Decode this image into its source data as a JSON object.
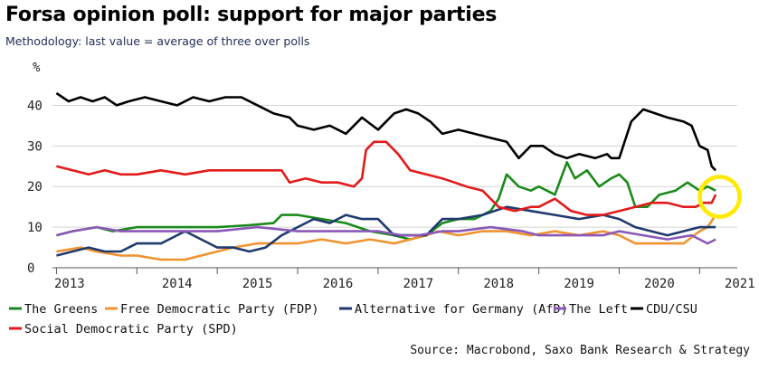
{
  "title": "Forsa opinion poll: support for major parties",
  "subtitle": "Methodology: last value = average of three over polls",
  "source": "Source: Macrobond, Saxo Bank Research & Strategy",
  "chart_data": {
    "type": "line",
    "title": "Forsa opinion poll: support for major parties",
    "ylabel": "%",
    "ylim": [
      0,
      45
    ],
    "xlim": [
      2012.95,
      2021.3
    ],
    "yticks": [
      0,
      10,
      20,
      30,
      40
    ],
    "xticks": [
      "2013",
      "2014",
      "2015",
      "2016",
      "2017",
      "2018",
      "2019",
      "2020",
      "2021"
    ],
    "grid": true,
    "legend_position": "bottom",
    "annotation": "yellow circle around latest values (early 2021)",
    "series": [
      {
        "name": "The Greens",
        "color": "#1a8a1a",
        "points": [
          [
            2013.0,
            8
          ],
          [
            2013.2,
            9
          ],
          [
            2013.5,
            10
          ],
          [
            2013.7,
            9
          ],
          [
            2014.0,
            10
          ],
          [
            2014.5,
            10
          ],
          [
            2015.0,
            10
          ],
          [
            2015.4,
            10.5
          ],
          [
            2015.7,
            11
          ],
          [
            2015.8,
            13
          ],
          [
            2016.0,
            13
          ],
          [
            2016.3,
            12
          ],
          [
            2016.6,
            11
          ],
          [
            2016.9,
            9
          ],
          [
            2017.2,
            8
          ],
          [
            2017.4,
            7
          ],
          [
            2017.6,
            8
          ],
          [
            2017.8,
            11
          ],
          [
            2018.0,
            12
          ],
          [
            2018.2,
            12
          ],
          [
            2018.4,
            14
          ],
          [
            2018.5,
            17
          ],
          [
            2018.6,
            23
          ],
          [
            2018.75,
            20
          ],
          [
            2018.9,
            19
          ],
          [
            2019.0,
            20
          ],
          [
            2019.2,
            18
          ],
          [
            2019.35,
            26
          ],
          [
            2019.45,
            22
          ],
          [
            2019.6,
            24
          ],
          [
            2019.75,
            20
          ],
          [
            2019.9,
            22
          ],
          [
            2020.0,
            23
          ],
          [
            2020.1,
            21
          ],
          [
            2020.2,
            15
          ],
          [
            2020.35,
            15
          ],
          [
            2020.5,
            18
          ],
          [
            2020.7,
            19
          ],
          [
            2020.85,
            21
          ],
          [
            2021.0,
            19
          ],
          [
            2021.1,
            20
          ],
          [
            2021.2,
            19
          ]
        ]
      },
      {
        "name": "Free Democratic Party (FDP)",
        "color": "#f0922e",
        "points": [
          [
            2013.0,
            4
          ],
          [
            2013.3,
            5
          ],
          [
            2013.5,
            4
          ],
          [
            2013.8,
            3
          ],
          [
            2014.0,
            3
          ],
          [
            2014.3,
            2
          ],
          [
            2014.6,
            2
          ],
          [
            2015.0,
            4
          ],
          [
            2015.2,
            5
          ],
          [
            2015.5,
            6
          ],
          [
            2015.8,
            6
          ],
          [
            2016.0,
            6
          ],
          [
            2016.3,
            7
          ],
          [
            2016.6,
            6
          ],
          [
            2016.9,
            7
          ],
          [
            2017.2,
            6
          ],
          [
            2017.4,
            7
          ],
          [
            2017.6,
            8
          ],
          [
            2017.75,
            9
          ],
          [
            2018.0,
            8
          ],
          [
            2018.3,
            9
          ],
          [
            2018.6,
            9
          ],
          [
            2018.9,
            8
          ],
          [
            2019.2,
            9
          ],
          [
            2019.5,
            8
          ],
          [
            2019.8,
            9
          ],
          [
            2020.0,
            8
          ],
          [
            2020.2,
            6
          ],
          [
            2020.4,
            6
          ],
          [
            2020.6,
            6
          ],
          [
            2020.8,
            6
          ],
          [
            2021.0,
            9
          ],
          [
            2021.1,
            10
          ],
          [
            2021.2,
            13
          ]
        ]
      },
      {
        "name": "Alternative for Germany (AfD)",
        "color": "#1f3a6e",
        "points": [
          [
            2013.0,
            3
          ],
          [
            2013.2,
            4
          ],
          [
            2013.4,
            5
          ],
          [
            2013.6,
            4
          ],
          [
            2013.8,
            4
          ],
          [
            2014.0,
            6
          ],
          [
            2014.3,
            6
          ],
          [
            2014.6,
            9
          ],
          [
            2014.8,
            7
          ],
          [
            2015.0,
            5
          ],
          [
            2015.2,
            5
          ],
          [
            2015.4,
            4
          ],
          [
            2015.6,
            5
          ],
          [
            2015.8,
            8
          ],
          [
            2016.0,
            10
          ],
          [
            2016.2,
            12
          ],
          [
            2016.4,
            11
          ],
          [
            2016.6,
            13
          ],
          [
            2016.8,
            12
          ],
          [
            2017.0,
            12
          ],
          [
            2017.2,
            8
          ],
          [
            2017.4,
            8
          ],
          [
            2017.6,
            8
          ],
          [
            2017.8,
            12
          ],
          [
            2018.0,
            12
          ],
          [
            2018.3,
            13
          ],
          [
            2018.6,
            15
          ],
          [
            2018.9,
            14
          ],
          [
            2019.2,
            13
          ],
          [
            2019.5,
            12
          ],
          [
            2019.8,
            13
          ],
          [
            2020.0,
            12
          ],
          [
            2020.2,
            10
          ],
          [
            2020.4,
            9
          ],
          [
            2020.6,
            8
          ],
          [
            2020.8,
            9
          ],
          [
            2021.0,
            10
          ],
          [
            2021.1,
            10
          ],
          [
            2021.2,
            10
          ]
        ]
      },
      {
        "name": "The Left",
        "color": "#8a58b8",
        "points": [
          [
            2013.0,
            8
          ],
          [
            2013.2,
            9
          ],
          [
            2013.5,
            10
          ],
          [
            2013.8,
            9
          ],
          [
            2014.0,
            9
          ],
          [
            2014.5,
            9
          ],
          [
            2015.0,
            9
          ],
          [
            2015.5,
            10
          ],
          [
            2016.0,
            9
          ],
          [
            2016.5,
            9
          ],
          [
            2017.0,
            9
          ],
          [
            2017.3,
            8
          ],
          [
            2017.5,
            8
          ],
          [
            2017.8,
            9
          ],
          [
            2018.0,
            9
          ],
          [
            2018.4,
            10
          ],
          [
            2018.8,
            9
          ],
          [
            2019.0,
            8
          ],
          [
            2019.4,
            8
          ],
          [
            2019.8,
            8
          ],
          [
            2020.0,
            9
          ],
          [
            2020.3,
            8
          ],
          [
            2020.6,
            7
          ],
          [
            2020.9,
            8
          ],
          [
            2021.0,
            7
          ],
          [
            2021.1,
            6
          ],
          [
            2021.2,
            7
          ]
        ]
      },
      {
        "name": "CDU/CSU",
        "color": "#000000",
        "points": [
          [
            2013.0,
            43
          ],
          [
            2013.15,
            41
          ],
          [
            2013.3,
            42
          ],
          [
            2013.45,
            41
          ],
          [
            2013.6,
            42
          ],
          [
            2013.75,
            40
          ],
          [
            2013.9,
            41
          ],
          [
            2014.1,
            42
          ],
          [
            2014.3,
            41
          ],
          [
            2014.5,
            40
          ],
          [
            2014.7,
            42
          ],
          [
            2014.9,
            41
          ],
          [
            2015.1,
            42
          ],
          [
            2015.3,
            42
          ],
          [
            2015.5,
            40
          ],
          [
            2015.7,
            38
          ],
          [
            2015.9,
            37
          ],
          [
            2016.0,
            35
          ],
          [
            2016.2,
            34
          ],
          [
            2016.4,
            35
          ],
          [
            2016.6,
            33
          ],
          [
            2016.8,
            37
          ],
          [
            2017.0,
            34
          ],
          [
            2017.2,
            38
          ],
          [
            2017.35,
            39
          ],
          [
            2017.5,
            38
          ],
          [
            2017.65,
            36
          ],
          [
            2017.8,
            33
          ],
          [
            2018.0,
            34
          ],
          [
            2018.2,
            33
          ],
          [
            2018.4,
            32
          ],
          [
            2018.6,
            31
          ],
          [
            2018.75,
            27
          ],
          [
            2018.9,
            30
          ],
          [
            2019.05,
            30
          ],
          [
            2019.2,
            28
          ],
          [
            2019.35,
            27
          ],
          [
            2019.5,
            28
          ],
          [
            2019.7,
            27
          ],
          [
            2019.85,
            28
          ],
          [
            2019.9,
            27
          ],
          [
            2020.0,
            27
          ],
          [
            2020.15,
            36
          ],
          [
            2020.3,
            39
          ],
          [
            2020.45,
            38
          ],
          [
            2020.6,
            37
          ],
          [
            2020.8,
            36
          ],
          [
            2020.9,
            35
          ],
          [
            2021.0,
            30
          ],
          [
            2021.1,
            29
          ],
          [
            2021.15,
            25
          ],
          [
            2021.2,
            24
          ]
        ]
      },
      {
        "name": "Social Democratic Party (SPD)",
        "color": "#e31a1a",
        "points": [
          [
            2013.0,
            25
          ],
          [
            2013.2,
            24
          ],
          [
            2013.4,
            23
          ],
          [
            2013.6,
            24
          ],
          [
            2013.8,
            23
          ],
          [
            2014.0,
            23
          ],
          [
            2014.3,
            24
          ],
          [
            2014.6,
            23
          ],
          [
            2014.9,
            24
          ],
          [
            2015.2,
            24
          ],
          [
            2015.5,
            24
          ],
          [
            2015.8,
            24
          ],
          [
            2015.9,
            21
          ],
          [
            2016.1,
            22
          ],
          [
            2016.3,
            21
          ],
          [
            2016.5,
            21
          ],
          [
            2016.7,
            20
          ],
          [
            2016.8,
            22
          ],
          [
            2016.85,
            29
          ],
          [
            2016.95,
            31
          ],
          [
            2017.1,
            31
          ],
          [
            2017.25,
            28
          ],
          [
            2017.4,
            24
          ],
          [
            2017.6,
            23
          ],
          [
            2017.8,
            22
          ],
          [
            2017.95,
            21
          ],
          [
            2018.1,
            20
          ],
          [
            2018.3,
            19
          ],
          [
            2018.5,
            15
          ],
          [
            2018.7,
            14
          ],
          [
            2018.9,
            15
          ],
          [
            2019.0,
            15
          ],
          [
            2019.2,
            17
          ],
          [
            2019.4,
            14
          ],
          [
            2019.6,
            13
          ],
          [
            2019.8,
            13
          ],
          [
            2020.0,
            14
          ],
          [
            2020.2,
            15
          ],
          [
            2020.4,
            16
          ],
          [
            2020.6,
            16
          ],
          [
            2020.8,
            15
          ],
          [
            2020.95,
            15
          ],
          [
            2021.05,
            16
          ],
          [
            2021.15,
            16
          ],
          [
            2021.2,
            18
          ]
        ]
      }
    ]
  }
}
